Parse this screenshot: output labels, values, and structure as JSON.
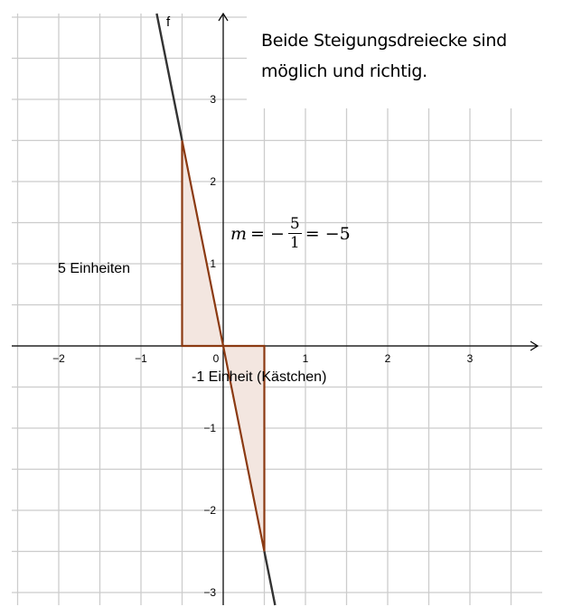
{
  "graph": {
    "function_label": "f",
    "function_slope": -5,
    "x_ticks": [
      "−2",
      "−1",
      "0",
      "1",
      "2",
      "3"
    ],
    "y_ticks": [
      "3",
      "2",
      "1",
      "−1",
      "−2",
      "−3"
    ],
    "colors": {
      "grid": "#cccccc",
      "axis": "#000000",
      "line": "#333333",
      "triangle": "#8b3a12",
      "fill": "#f3e6e0"
    }
  },
  "annotations": {
    "note_line1": "Beide Steigungsdreiecke sind",
    "note_line2": "möglich und richtig.",
    "vertical_label": "5 Einheiten",
    "horizontal_label": "-1 Einheit (Kästchen)",
    "formula": {
      "lhs": "m",
      "eq1": "= −",
      "num": "5",
      "den": "1",
      "rhs": "= −5"
    }
  }
}
